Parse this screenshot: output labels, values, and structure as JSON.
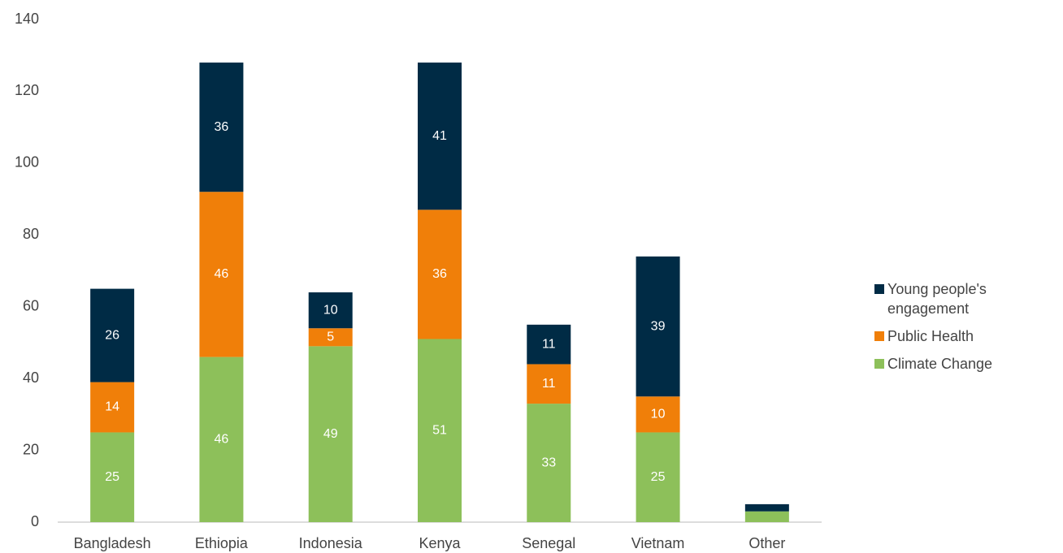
{
  "chart_data": {
    "type": "stacked_bar",
    "categories": [
      "Bangladesh",
      "Ethiopia",
      "Indonesia",
      "Kenya",
      "Senegal",
      "Vietnam",
      "Other"
    ],
    "series": [
      {
        "name": "Climate Change",
        "color": "#8dc05a",
        "values": [
          25,
          46,
          49,
          51,
          33,
          25,
          3
        ]
      },
      {
        "name": "Public Health",
        "color": "#f07f09",
        "values": [
          14,
          46,
          5,
          36,
          11,
          10,
          0
        ]
      },
      {
        "name": "Young people's engagement",
        "color": "#002b45",
        "values": [
          26,
          36,
          10,
          41,
          11,
          39,
          2
        ]
      }
    ],
    "ylim": [
      0,
      140
    ],
    "yticks": [
      0,
      20,
      40,
      60,
      80,
      100,
      120,
      140
    ],
    "grid": false,
    "legend": "right"
  }
}
